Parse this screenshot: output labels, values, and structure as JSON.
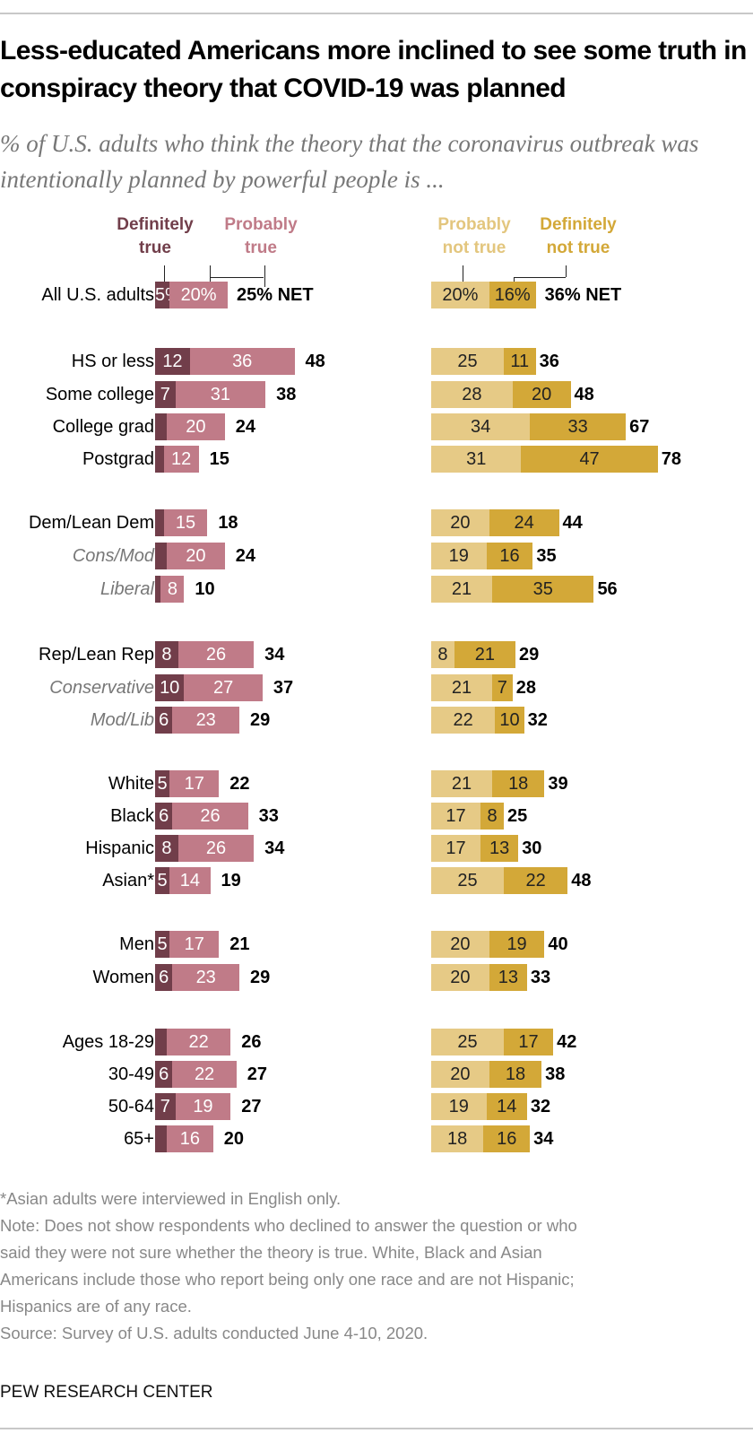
{
  "colors": {
    "definitely_true": "#713e4a",
    "probably_true": "#c07b88",
    "probably_not_true": "#e6ca86",
    "definitely_not_true": "#d3a838"
  },
  "chart_data": {
    "type": "bar",
    "orientation": "horizontal-stacked-diverging",
    "title": "Less-educated Americans more inclined to see some truth in conspiracy theory that COVID-19 was planned",
    "subtitle": "% of U.S. adults who think the theory that the coronavirus outbreak was intentionally planned by powerful people is ...",
    "legend": {
      "definitely_true": "Definitely true",
      "probably_true": "Probably true",
      "probably_not_true": "Probably not true",
      "definitely_not_true": "Definitely not true"
    },
    "legend_lines": {
      "dt": [
        "Definitely",
        "true"
      ],
      "pt": [
        "Probably",
        "true"
      ],
      "pnt": [
        "Probably",
        "not true"
      ],
      "dnt": [
        "Definitely",
        "not true"
      ]
    },
    "rows": [
      {
        "label": "All U.S. adults",
        "sub": false,
        "dt": 5,
        "pt": 20,
        "net_true": "25% NET",
        "pnt": 20,
        "dnt": 16,
        "net_not": "36% NET",
        "pct": true
      },
      {
        "label": "HS or less",
        "sub": false,
        "dt": 12,
        "pt": 36,
        "net_true": "48",
        "pnt": 25,
        "dnt": 11,
        "net_not": "36"
      },
      {
        "label": "Some college",
        "sub": false,
        "dt": 7,
        "pt": 31,
        "net_true": "38",
        "pnt": 28,
        "dnt": 20,
        "net_not": "48"
      },
      {
        "label": "College grad",
        "sub": false,
        "dt": 4,
        "pt": 20,
        "net_true": "24",
        "pnt": 34,
        "dnt": 33,
        "net_not": "67"
      },
      {
        "label": "Postgrad",
        "sub": false,
        "dt": 3,
        "pt": 12,
        "net_true": "15",
        "pnt": 31,
        "dnt": 47,
        "net_not": "78"
      },
      {
        "label": "Dem/Lean Dem",
        "sub": false,
        "dt": 3,
        "pt": 15,
        "net_true": "18",
        "pnt": 20,
        "dnt": 24,
        "net_not": "44"
      },
      {
        "label": "Cons/Mod",
        "sub": true,
        "dt": 4,
        "pt": 20,
        "net_true": "24",
        "pnt": 19,
        "dnt": 16,
        "net_not": "35"
      },
      {
        "label": "Liberal",
        "sub": true,
        "dt": 2,
        "pt": 8,
        "net_true": "10",
        "pnt": 21,
        "dnt": 35,
        "net_not": "56"
      },
      {
        "label": "Rep/Lean Rep",
        "sub": false,
        "dt": 8,
        "pt": 26,
        "net_true": "34",
        "pnt": 8,
        "dnt": 21,
        "net_not": "29"
      },
      {
        "label": "Conservative",
        "sub": true,
        "dt": 10,
        "pt": 27,
        "net_true": "37",
        "pnt": 21,
        "dnt": 7,
        "net_not": "28"
      },
      {
        "label": "Mod/Lib",
        "sub": true,
        "dt": 6,
        "pt": 23,
        "net_true": "29",
        "pnt": 22,
        "dnt": 10,
        "net_not": "32"
      },
      {
        "label": "White",
        "sub": false,
        "dt": 5,
        "pt": 17,
        "net_true": "22",
        "pnt": 21,
        "dnt": 18,
        "net_not": "39"
      },
      {
        "label": "Black",
        "sub": false,
        "dt": 6,
        "pt": 26,
        "net_true": "33",
        "pnt": 17,
        "dnt": 8,
        "net_not": "25"
      },
      {
        "label": "Hispanic",
        "sub": false,
        "dt": 8,
        "pt": 26,
        "net_true": "34",
        "pnt": 17,
        "dnt": 13,
        "net_not": "30"
      },
      {
        "label": "Asian*",
        "sub": false,
        "dt": 5,
        "pt": 14,
        "net_true": "19",
        "pnt": 25,
        "dnt": 22,
        "net_not": "48"
      },
      {
        "label": "Men",
        "sub": false,
        "dt": 5,
        "pt": 17,
        "net_true": "21",
        "pnt": 20,
        "dnt": 19,
        "net_not": "40"
      },
      {
        "label": "Women",
        "sub": false,
        "dt": 6,
        "pt": 23,
        "net_true": "29",
        "pnt": 20,
        "dnt": 13,
        "net_not": "33"
      },
      {
        "label": "Ages 18-29",
        "sub": false,
        "dt": 4,
        "pt": 22,
        "net_true": "26",
        "pnt": 25,
        "dnt": 17,
        "net_not": "42"
      },
      {
        "label": "30-49",
        "sub": false,
        "dt": 6,
        "pt": 22,
        "net_true": "27",
        "pnt": 20,
        "dnt": 18,
        "net_not": "38"
      },
      {
        "label": "50-64",
        "sub": false,
        "dt": 7,
        "pt": 19,
        "net_true": "27",
        "pnt": 19,
        "dnt": 14,
        "net_not": "32"
      },
      {
        "label": "65+",
        "sub": false,
        "dt": 4,
        "pt": 16,
        "net_true": "20",
        "pnt": 18,
        "dnt": 16,
        "net_not": "34"
      }
    ]
  },
  "notes": [
    "*Asian adults were interviewed in English only.",
    "Note: Does not show respondents who declined to answer the question or who",
    "said they were not sure whether the theory is true. White, Black and Asian",
    "Americans include those who report being only one race and are not Hispanic;",
    "Hispanics are of any race.",
    "Source: Survey of U.S. adults conducted June 4-10, 2020."
  ],
  "brand": "PEW RESEARCH CENTER"
}
